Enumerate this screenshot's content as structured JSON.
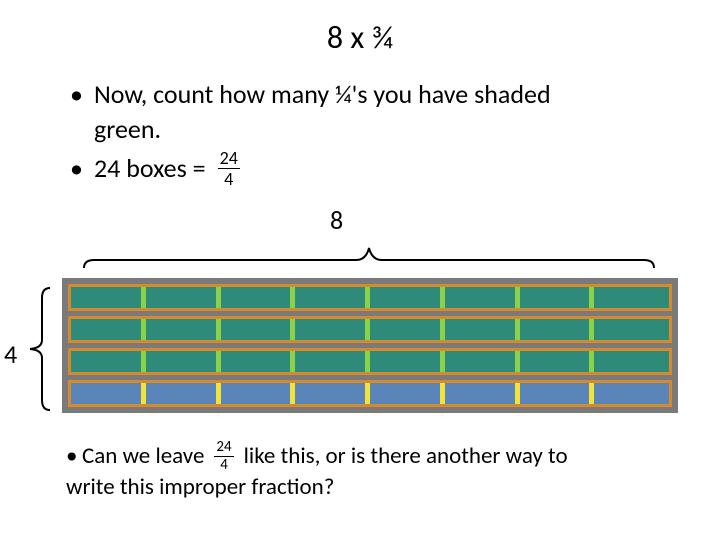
{
  "title": "8 x ¾",
  "bullets": {
    "line1": "Now, count how many ¼'s you have shaded",
    "line1b": "green.",
    "line2_pre": "24 boxes =",
    "fraction": {
      "num": "24",
      "den": "4"
    }
  },
  "labels": {
    "columns": "8",
    "rows": "4"
  },
  "grid": {
    "cols": 8,
    "rows": 4,
    "shaded_rows": 3,
    "colors": {
      "shaded_fill": "#2e8b7a",
      "unshaded_fill": "#5a85b8",
      "divider_shaded": "#8ad24a",
      "divider_unshaded": "#f2e23a",
      "frame": "#d68a2e",
      "outer_bg": "#7a7a7a"
    },
    "row_gap": 5,
    "cell_divider_width": 5
  },
  "bottom": {
    "pre": "Can we leave",
    "fraction": {
      "num": "24",
      "den": "4"
    },
    "post1": "like this, or is there another way to",
    "post2": "write this improper fraction?"
  },
  "brace_color": "#000000"
}
